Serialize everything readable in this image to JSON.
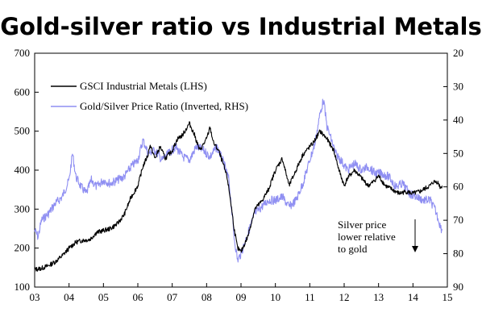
{
  "chart_data": {
    "type": "line",
    "title": "Gold-silver ratio vs Industrial Metals",
    "x_ticks": [
      "03",
      "04",
      "05",
      "06",
      "07",
      "08",
      "09",
      "10",
      "11",
      "12",
      "13",
      "14",
      "15"
    ],
    "x_range": [
      2003,
      2015
    ],
    "left_axis": {
      "ticks": [
        100,
        200,
        300,
        400,
        500,
        600,
        700
      ],
      "ylim": [
        100,
        700
      ]
    },
    "right_axis": {
      "ticks": [
        20,
        30,
        40,
        50,
        60,
        70,
        80,
        90
      ],
      "ylim": [
        20,
        90
      ],
      "inverted": true
    },
    "legend": {
      "placement": "upper-left"
    },
    "annotation": {
      "lines": [
        "Silver price",
        "lower relative",
        "to gold"
      ],
      "arrow": "down"
    },
    "colors": {
      "industrial": "#000000",
      "ratio": "#8f8ff2"
    },
    "series": [
      {
        "name": "GSCI Industrial Metals (LHS)",
        "axis": "left",
        "x": [
          2003.0,
          2003.2,
          2003.4,
          2003.6,
          2003.8,
          2004.0,
          2004.2,
          2004.4,
          2004.6,
          2004.8,
          2005.0,
          2005.2,
          2005.4,
          2005.6,
          2005.8,
          2006.0,
          2006.15,
          2006.3,
          2006.35,
          2006.5,
          2006.65,
          2006.8,
          2007.0,
          2007.15,
          2007.3,
          2007.5,
          2007.65,
          2007.8,
          2008.0,
          2008.1,
          2008.2,
          2008.35,
          2008.5,
          2008.6,
          2008.7,
          2008.8,
          2008.9,
          2009.0,
          2009.2,
          2009.4,
          2009.6,
          2009.8,
          2010.0,
          2010.2,
          2010.4,
          2010.6,
          2010.8,
          2011.0,
          2011.1,
          2011.3,
          2011.5,
          2011.7,
          2011.85,
          2012.0,
          2012.1,
          2012.3,
          2012.5,
          2012.7,
          2012.85,
          2013.0,
          2013.2,
          2013.4,
          2013.6,
          2013.8,
          2014.0,
          2014.2,
          2014.4,
          2014.5,
          2014.6,
          2014.7,
          2014.75,
          2014.8,
          2014.85
        ],
        "values": [
          145,
          148,
          155,
          165,
          180,
          200,
          215,
          220,
          222,
          240,
          245,
          250,
          262,
          285,
          330,
          360,
          410,
          440,
          465,
          430,
          460,
          430,
          450,
          480,
          490,
          520,
          490,
          450,
          480,
          510,
          470,
          450,
          410,
          380,
          320,
          250,
          200,
          190,
          230,
          300,
          320,
          350,
          400,
          430,
          360,
          400,
          440,
          460,
          470,
          500,
          480,
          450,
          400,
          360,
          380,
          400,
          380,
          360,
          370,
          385,
          360,
          350,
          340,
          345,
          340,
          345,
          355,
          360,
          370,
          370,
          365,
          355,
          360
        ]
      },
      {
        "name": "Gold/Silver Price Ratio (Inverted, RHS)",
        "axis": "right",
        "x": [
          2003.0,
          2003.1,
          2003.2,
          2003.4,
          2003.6,
          2003.8,
          2004.0,
          2004.1,
          2004.2,
          2004.35,
          2004.5,
          2004.65,
          2004.8,
          2005.0,
          2005.2,
          2005.4,
          2005.6,
          2005.8,
          2006.0,
          2006.15,
          2006.3,
          2006.5,
          2006.7,
          2006.9,
          2007.1,
          2007.3,
          2007.5,
          2007.7,
          2007.9,
          2008.1,
          2008.3,
          2008.5,
          2008.65,
          2008.8,
          2008.9,
          2009.0,
          2009.2,
          2009.4,
          2009.6,
          2009.8,
          2010.0,
          2010.2,
          2010.4,
          2010.6,
          2010.8,
          2011.0,
          2011.15,
          2011.3,
          2011.4,
          2011.5,
          2011.6,
          2011.75,
          2011.9,
          2012.1,
          2012.3,
          2012.5,
          2012.7,
          2012.9,
          2013.1,
          2013.3,
          2013.5,
          2013.7,
          2013.9,
          2014.1,
          2014.3,
          2014.5,
          2014.65,
          2014.75,
          2014.8,
          2014.85
        ],
        "values": [
          73,
          75,
          70,
          68,
          65,
          63,
          58,
          50,
          57,
          60,
          62,
          58,
          60,
          58,
          59,
          58,
          57,
          54,
          52,
          46,
          50,
          49,
          52,
          50,
          48,
          51,
          52,
          48,
          49,
          51,
          48,
          53,
          58,
          75,
          82,
          80,
          74,
          68,
          66,
          64,
          64,
          63,
          66,
          64,
          59,
          52,
          47,
          38,
          34,
          42,
          45,
          50,
          52,
          55,
          53,
          55,
          54,
          56,
          56,
          57,
          60,
          59,
          62,
          63,
          64,
          64,
          67,
          70,
          72,
          73
        ]
      }
    ]
  }
}
